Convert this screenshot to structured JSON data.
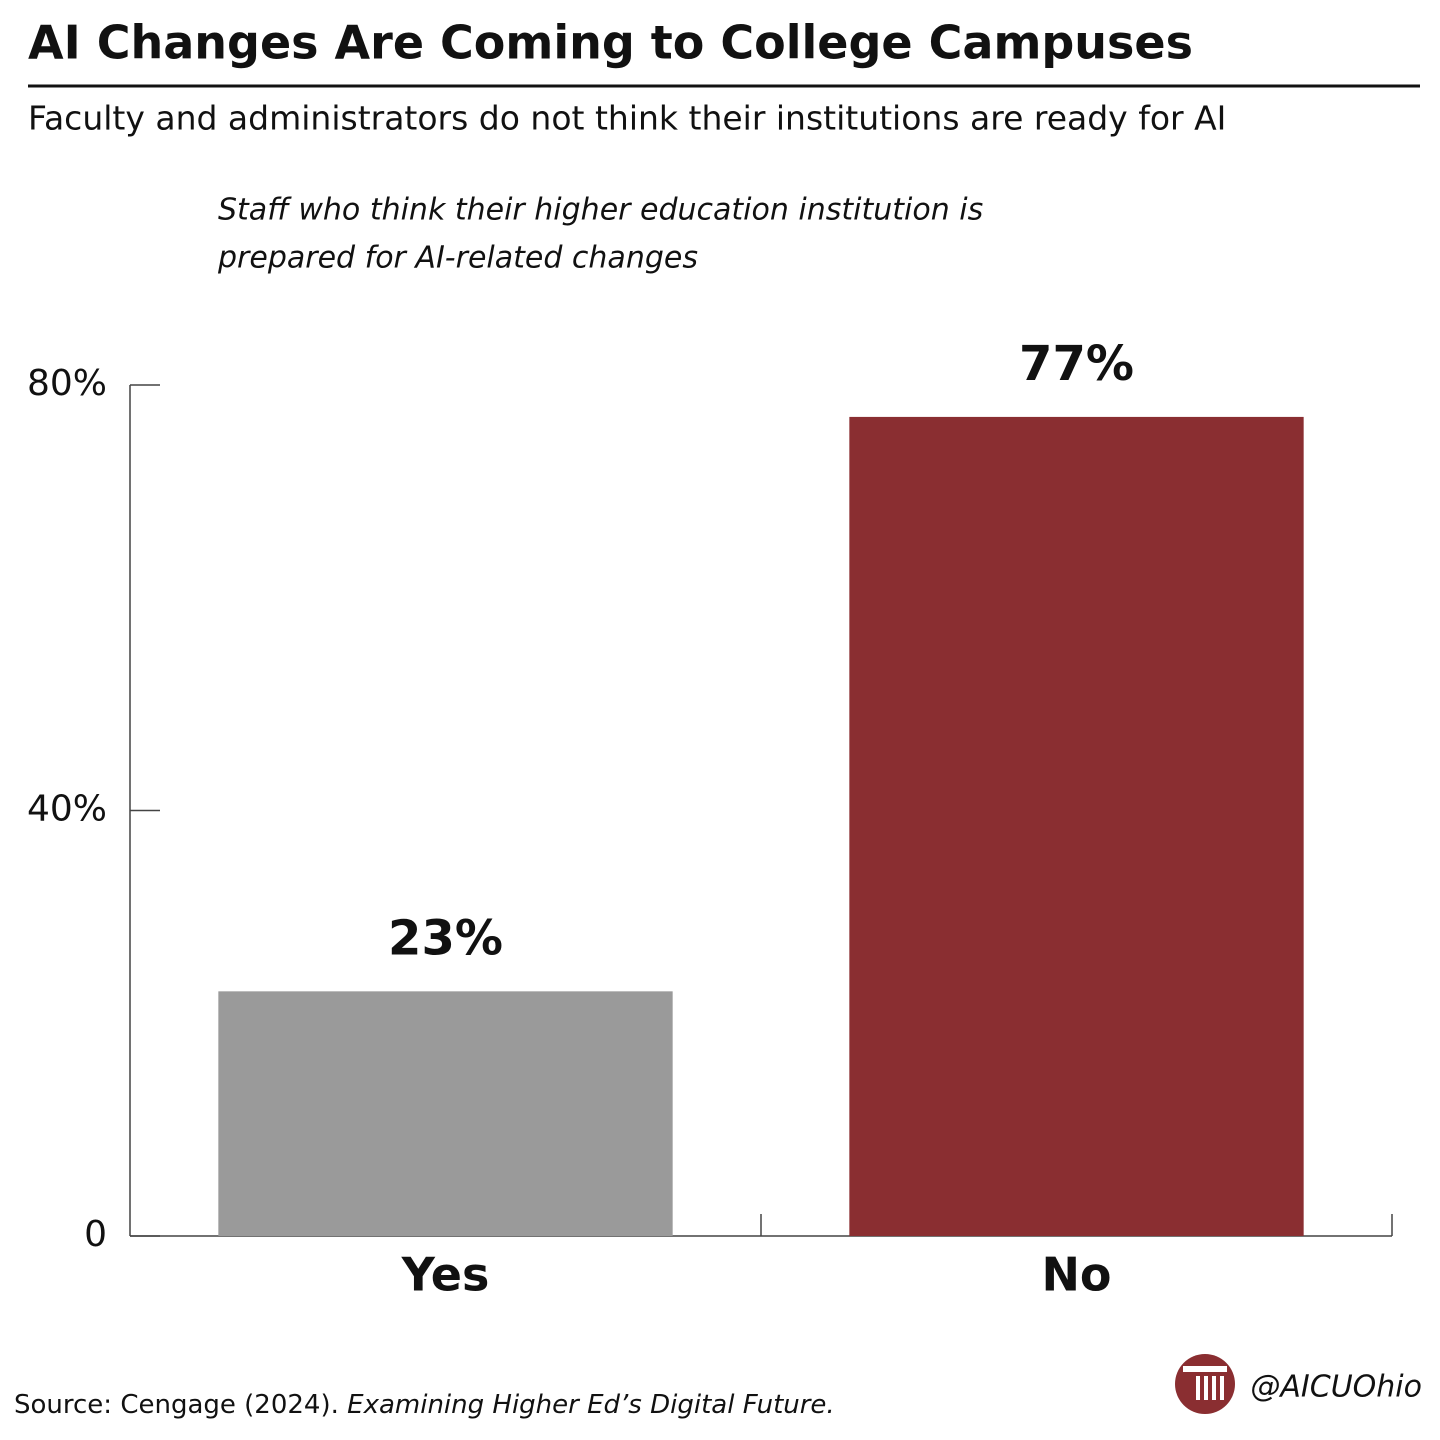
{
  "chart_data": {
    "type": "bar",
    "title": "AI Changes Are Coming to College Campuses",
    "subtitle": "Faculty and administrators do not think their institutions are ready for AI",
    "annotation": [
      "Staff who think their higher education institution is",
      "prepared for AI-related changes"
    ],
    "categories": [
      "Yes",
      "No"
    ],
    "values": [
      23,
      77
    ],
    "value_labels": [
      "23%",
      "77%"
    ],
    "colors": [
      "#9a9a9a",
      "#8a2e31"
    ],
    "ylim": [
      0,
      80
    ],
    "yticks": [
      0,
      {
        "value": 40,
        "label": "40%"
      },
      {
        "value": 80,
        "label": "80%"
      }
    ],
    "grid": false,
    "source": {
      "text": "Source: Cengage (2024).",
      "work": "Examining Higher Ed’s Digital Future."
    },
    "handle": "@AICUOhio"
  }
}
